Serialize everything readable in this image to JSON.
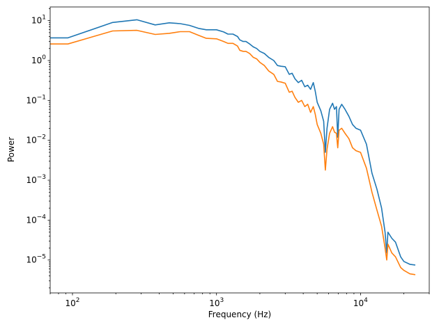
{
  "chart_data": {
    "type": "line",
    "title": "",
    "xlabel": "Frequency (Hz)",
    "ylabel": "Power",
    "xscale": "log",
    "yscale": "log",
    "xlim": [
      70,
      30000
    ],
    "ylim": [
      1.5e-06,
      22
    ],
    "grid": false,
    "legend": "none",
    "x_ticks": [
      {
        "value": 100,
        "base": "10",
        "exp": "2"
      },
      {
        "value": 1000,
        "base": "10",
        "exp": "3"
      },
      {
        "value": 10000,
        "base": "10",
        "exp": "4"
      }
    ],
    "y_ticks": [
      {
        "value": 1e-05,
        "base": "10",
        "exp": "−5"
      },
      {
        "value": 0.0001,
        "base": "10",
        "exp": "−4"
      },
      {
        "value": 0.001,
        "base": "10",
        "exp": "−3"
      },
      {
        "value": 0.01,
        "base": "10",
        "exp": "−2"
      },
      {
        "value": 0.1,
        "base": "10",
        "exp": "−1"
      },
      {
        "value": 1,
        "base": "10",
        "exp": "0"
      },
      {
        "value": 10,
        "base": "10",
        "exp": "1"
      }
    ],
    "series": [
      {
        "color": "#1f77b4",
        "points": [
          [
            70,
            3.7
          ],
          [
            93,
            3.7
          ],
          [
            190,
            9.0
          ],
          [
            280,
            10.5
          ],
          [
            375,
            7.8
          ],
          [
            470,
            8.8
          ],
          [
            560,
            8.4
          ],
          [
            650,
            7.6
          ],
          [
            750,
            6.4
          ],
          [
            850,
            5.9
          ],
          [
            1000,
            5.9
          ],
          [
            1120,
            5.2
          ],
          [
            1200,
            4.6
          ],
          [
            1300,
            4.6
          ],
          [
            1400,
            4.0
          ],
          [
            1450,
            3.3
          ],
          [
            1530,
            3.0
          ],
          [
            1600,
            3.0
          ],
          [
            1700,
            2.6
          ],
          [
            1800,
            2.2
          ],
          [
            1900,
            2.0
          ],
          [
            2000,
            1.7
          ],
          [
            2150,
            1.5
          ],
          [
            2300,
            1.2
          ],
          [
            2500,
            1.0
          ],
          [
            2650,
            0.75
          ],
          [
            2800,
            0.72
          ],
          [
            3000,
            0.7
          ],
          [
            3200,
            0.45
          ],
          [
            3350,
            0.48
          ],
          [
            3500,
            0.35
          ],
          [
            3700,
            0.28
          ],
          [
            3900,
            0.32
          ],
          [
            4100,
            0.22
          ],
          [
            4300,
            0.24
          ],
          [
            4500,
            0.19
          ],
          [
            4700,
            0.28
          ],
          [
            4850,
            0.17
          ],
          [
            5000,
            0.09
          ],
          [
            5300,
            0.055
          ],
          [
            5550,
            0.03
          ],
          [
            5700,
            0.005
          ],
          [
            5850,
            0.02
          ],
          [
            6100,
            0.06
          ],
          [
            6400,
            0.085
          ],
          [
            6600,
            0.06
          ],
          [
            6800,
            0.07
          ],
          [
            6950,
            0.012
          ],
          [
            7100,
            0.06
          ],
          [
            7400,
            0.08
          ],
          [
            7800,
            0.06
          ],
          [
            8300,
            0.04
          ],
          [
            8800,
            0.025
          ],
          [
            9300,
            0.02
          ],
          [
            10000,
            0.018
          ],
          [
            11000,
            0.008
          ],
          [
            12000,
            0.0015
          ],
          [
            13000,
            0.0006
          ],
          [
            14000,
            0.0002
          ],
          [
            14800,
            5e-05
          ],
          [
            15200,
            1.5e-05
          ],
          [
            15500,
            5e-05
          ],
          [
            16500,
            3.5e-05
          ],
          [
            17500,
            2.8e-05
          ],
          [
            19000,
            1.2e-05
          ],
          [
            20000,
            9.2e-06
          ],
          [
            22000,
            7.8e-06
          ],
          [
            24000,
            7.5e-06
          ]
        ]
      },
      {
        "color": "#ff7f0e",
        "points": [
          [
            70,
            2.6
          ],
          [
            93,
            2.6
          ],
          [
            190,
            5.5
          ],
          [
            280,
            5.7
          ],
          [
            375,
            4.5
          ],
          [
            470,
            4.8
          ],
          [
            560,
            5.3
          ],
          [
            650,
            5.3
          ],
          [
            750,
            4.3
          ],
          [
            850,
            3.6
          ],
          [
            1000,
            3.5
          ],
          [
            1120,
            3.0
          ],
          [
            1200,
            2.7
          ],
          [
            1300,
            2.7
          ],
          [
            1400,
            2.3
          ],
          [
            1450,
            1.8
          ],
          [
            1530,
            1.7
          ],
          [
            1600,
            1.7
          ],
          [
            1700,
            1.5
          ],
          [
            1800,
            1.2
          ],
          [
            1900,
            1.1
          ],
          [
            2000,
            0.9
          ],
          [
            2150,
            0.75
          ],
          [
            2300,
            0.55
          ],
          [
            2500,
            0.45
          ],
          [
            2650,
            0.3
          ],
          [
            2800,
            0.29
          ],
          [
            3000,
            0.27
          ],
          [
            3200,
            0.16
          ],
          [
            3350,
            0.17
          ],
          [
            3500,
            0.12
          ],
          [
            3700,
            0.09
          ],
          [
            3900,
            0.1
          ],
          [
            4100,
            0.07
          ],
          [
            4300,
            0.08
          ],
          [
            4500,
            0.05
          ],
          [
            4700,
            0.07
          ],
          [
            4850,
            0.045
          ],
          [
            5000,
            0.025
          ],
          [
            5300,
            0.015
          ],
          [
            5550,
            0.008
          ],
          [
            5700,
            0.0018
          ],
          [
            5850,
            0.006
          ],
          [
            6100,
            0.015
          ],
          [
            6400,
            0.022
          ],
          [
            6600,
            0.016
          ],
          [
            6800,
            0.015
          ],
          [
            6950,
            0.0065
          ],
          [
            7100,
            0.018
          ],
          [
            7400,
            0.02
          ],
          [
            7800,
            0.015
          ],
          [
            8300,
            0.011
          ],
          [
            8800,
            0.0065
          ],
          [
            9300,
            0.0055
          ],
          [
            10000,
            0.005
          ],
          [
            11000,
            0.002
          ],
          [
            12000,
            0.0005
          ],
          [
            13000,
            0.00018
          ],
          [
            14000,
            7e-05
          ],
          [
            14800,
            2e-05
          ],
          [
            15200,
            1e-05
          ],
          [
            15500,
            2.5e-05
          ],
          [
            16500,
            1.5e-05
          ],
          [
            17500,
            1.2e-05
          ],
          [
            19000,
            6.5e-06
          ],
          [
            20000,
            5.5e-06
          ],
          [
            22000,
            4.5e-06
          ],
          [
            24000,
            4.3e-06
          ]
        ]
      }
    ]
  }
}
